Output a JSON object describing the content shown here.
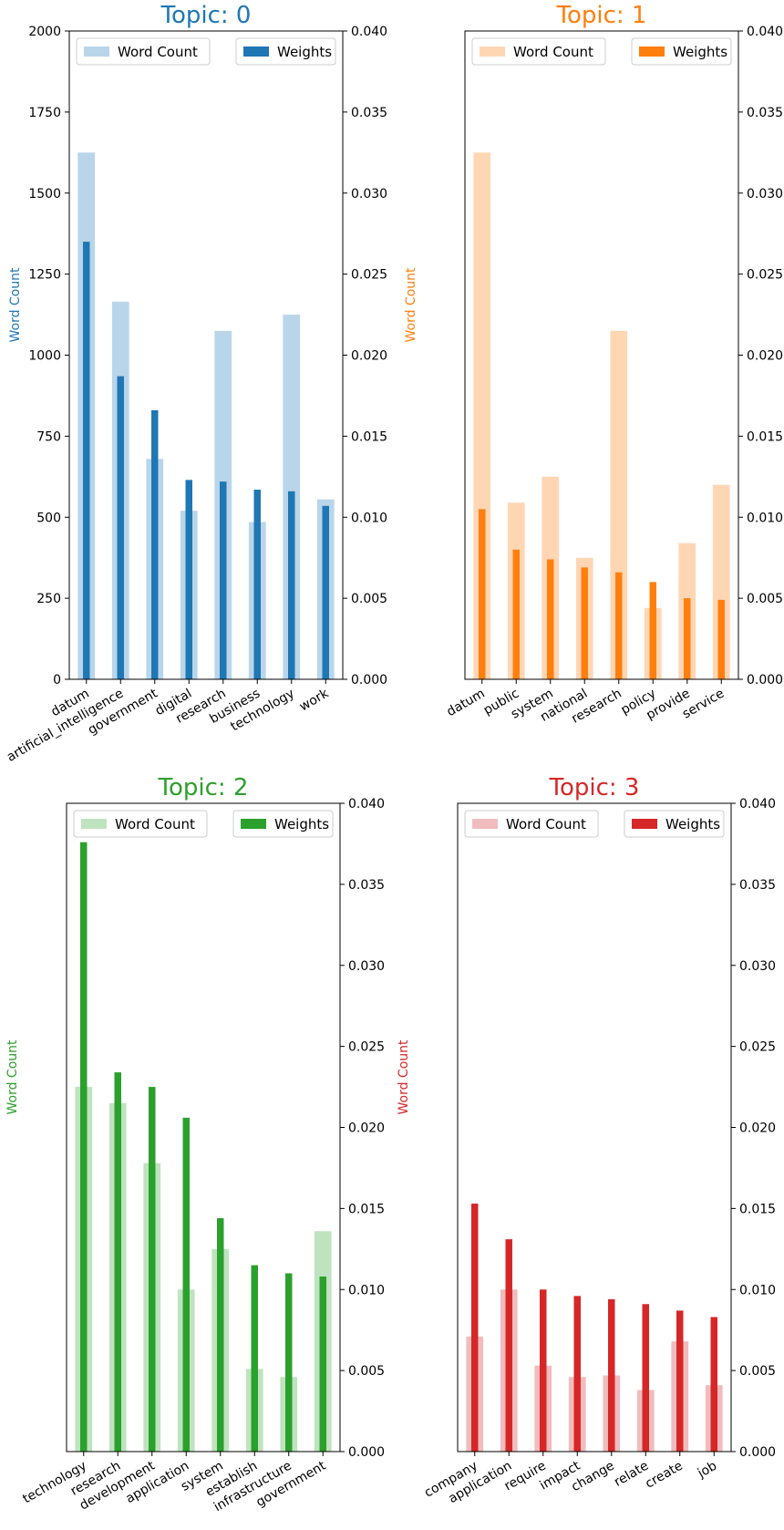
{
  "chart_data": [
    {
      "type": "bar",
      "title": "Topic: 0",
      "color": "#1f77b4",
      "light_color": "#b9d5ea",
      "ylabel": "Word Count",
      "ylim_left": [
        0,
        2000
      ],
      "ylim_right": [
        0,
        0.04
      ],
      "yticks_left": [
        "0",
        "250",
        "500",
        "750",
        "1000",
        "1250",
        "1500",
        "1750",
        "2000"
      ],
      "yticks_right": [
        "0.000",
        "0.005",
        "0.010",
        "0.015",
        "0.020",
        "0.025",
        "0.030",
        "0.035",
        "0.040"
      ],
      "categories": [
        "datum",
        "artificial_intelligence",
        "government",
        "digital",
        "research",
        "business",
        "technology",
        "work"
      ],
      "series": [
        {
          "name": "Word Count",
          "axis": "left",
          "values": [
            1625,
            1165,
            680,
            520,
            1075,
            485,
            1125,
            555
          ]
        },
        {
          "name": "Weights",
          "axis": "right",
          "values": [
            0.027,
            0.0187,
            0.0166,
            0.0123,
            0.0122,
            0.0117,
            0.0116,
            0.0107
          ]
        }
      ],
      "legend": "top"
    },
    {
      "type": "bar",
      "title": "Topic: 1",
      "color": "#ff7f0e",
      "light_color": "#ffd6b4",
      "ylabel": "Word Count",
      "ylim_left": [
        0,
        2000
      ],
      "ylim_right": [
        0,
        0.04
      ],
      "yticks_left": [],
      "yticks_right": [
        "0.000",
        "0.005",
        "0.010",
        "0.015",
        "0.020",
        "0.025",
        "0.030",
        "0.035",
        "0.040"
      ],
      "categories": [
        "datum",
        "public",
        "system",
        "national",
        "research",
        "policy",
        "provide",
        "service"
      ],
      "series": [
        {
          "name": "Word Count",
          "axis": "left",
          "values": [
            1625,
            545,
            625,
            375,
            1075,
            220,
            420,
            600
          ]
        },
        {
          "name": "Weights",
          "axis": "right",
          "values": [
            0.0105,
            0.008,
            0.0074,
            0.0069,
            0.0066,
            0.006,
            0.005,
            0.0049
          ]
        }
      ],
      "legend": "top"
    },
    {
      "type": "bar",
      "title": "Topic: 2",
      "color": "#2ca02c",
      "light_color": "#bfe3bf",
      "ylabel": "Word Count",
      "ylim_left": [
        0,
        2000
      ],
      "ylim_right": [
        0,
        0.04
      ],
      "yticks_left": [],
      "yticks_right": [
        "0.000",
        "0.005",
        "0.010",
        "0.015",
        "0.020",
        "0.025",
        "0.030",
        "0.035",
        "0.040"
      ],
      "categories": [
        "technology",
        "research",
        "development",
        "application",
        "system",
        "establish",
        "infrastructure",
        "government"
      ],
      "series": [
        {
          "name": "Word Count",
          "axis": "left",
          "values": [
            1125,
            1075,
            890,
            500,
            625,
            255,
            230,
            680
          ]
        },
        {
          "name": "Weights",
          "axis": "right",
          "values": [
            0.0376,
            0.0234,
            0.0225,
            0.0206,
            0.0144,
            0.0115,
            0.011,
            0.0108
          ]
        }
      ],
      "legend": "top"
    },
    {
      "type": "bar",
      "title": "Topic: 3",
      "color": "#d62728",
      "light_color": "#f1bcbd",
      "ylabel": "Word Count",
      "ylim_left": [
        0,
        2000
      ],
      "ylim_right": [
        0,
        0.04
      ],
      "yticks_left": [],
      "yticks_right": [
        "0.000",
        "0.005",
        "0.010",
        "0.015",
        "0.020",
        "0.025",
        "0.030",
        "0.035",
        "0.040"
      ],
      "categories": [
        "company",
        "application",
        "require",
        "impact",
        "change",
        "relate",
        "create",
        "job"
      ],
      "series": [
        {
          "name": "Word Count",
          "axis": "left",
          "values": [
            355,
            500,
            265,
            230,
            235,
            190,
            340,
            205
          ]
        },
        {
          "name": "Weights",
          "axis": "right",
          "values": [
            0.0153,
            0.0131,
            0.01,
            0.0096,
            0.0094,
            0.0091,
            0.0087,
            0.0083
          ]
        }
      ],
      "legend": "top"
    }
  ]
}
